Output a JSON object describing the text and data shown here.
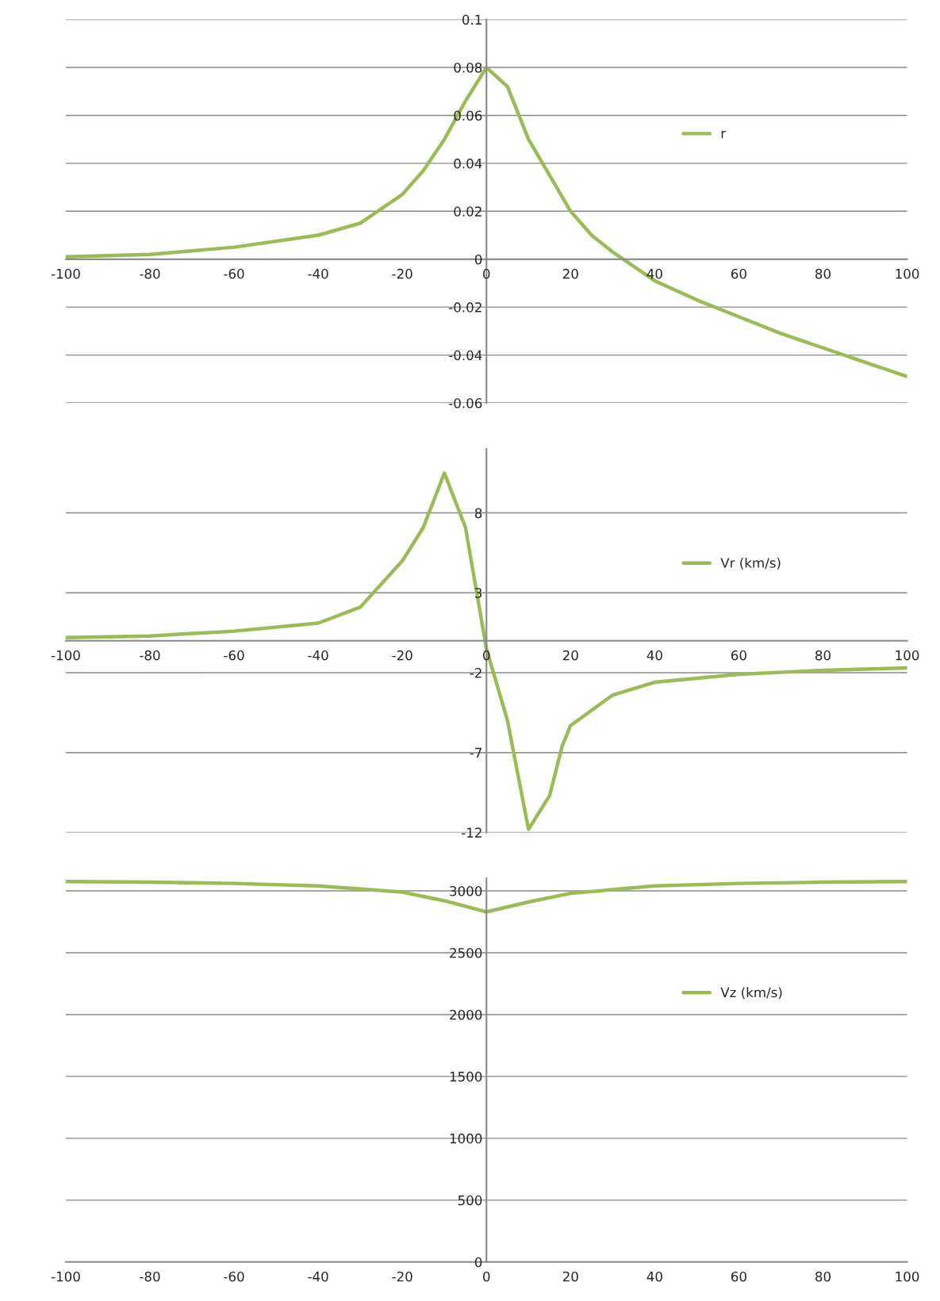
{
  "chart_data": [
    {
      "type": "line",
      "x": [
        -100,
        -80,
        -60,
        -40,
        -30,
        -20,
        -15,
        -10,
        -5,
        0,
        5,
        10,
        15,
        20,
        25,
        30,
        35,
        40,
        50,
        60,
        70,
        80,
        90,
        100
      ],
      "series": [
        {
          "name": "r",
          "color": "#9bbb59",
          "values": [
            0.001,
            0.002,
            0.005,
            0.01,
            0.015,
            0.027,
            0.037,
            0.05,
            0.066,
            0.08,
            0.072,
            0.05,
            0.035,
            0.02,
            0.01,
            0.003,
            -0.003,
            -0.009,
            -0.017,
            -0.024,
            -0.031,
            -0.037,
            -0.043,
            -0.049
          ]
        }
      ],
      "xlim": [
        -100,
        100
      ],
      "xticks": [
        -100,
        -80,
        -60,
        -40,
        -20,
        0,
        20,
        40,
        60,
        80,
        100
      ],
      "ylim": [
        -0.06,
        0.1
      ],
      "yticks": [
        -0.06,
        -0.04,
        -0.02,
        0,
        0.02,
        0.04,
        0.06,
        0.08,
        0.1
      ],
      "grid": "y",
      "legend": "right",
      "marker": "none",
      "line_style": "solid"
    },
    {
      "type": "line",
      "x": [
        -100,
        -80,
        -60,
        -40,
        -30,
        -20,
        -15,
        -10,
        -5,
        0,
        5,
        10,
        15,
        18,
        20,
        30,
        40,
        60,
        80,
        100
      ],
      "series": [
        {
          "name": "Vr (km/s)",
          "color": "#9bbb59",
          "values": [
            0.2,
            0.3,
            0.6,
            1.1,
            2.1,
            5,
            7.1,
            10.5,
            7.1,
            -0.5,
            -5,
            -11.8,
            -9.7,
            -6.6,
            -5.3,
            -3.4,
            -2.6,
            -2.1,
            -1.85,
            -1.7
          ]
        }
      ],
      "xlim": [
        -100,
        100
      ],
      "xticks": [
        -100,
        -80,
        -60,
        -40,
        -20,
        0,
        20,
        40,
        60,
        80,
        100
      ],
      "ylim": [
        -12,
        12
      ],
      "yticks": [
        -12,
        -7,
        -2,
        3,
        8
      ],
      "grid": "y",
      "legend": "right",
      "marker": "none",
      "line_style": "solid"
    },
    {
      "type": "line",
      "x": [
        -100,
        -80,
        -60,
        -40,
        -20,
        -10,
        0,
        10,
        20,
        40,
        60,
        80,
        100
      ],
      "series": [
        {
          "name": "Vz (km/s)",
          "color": "#9bbb59",
          "values": [
            3075,
            3070,
            3060,
            3040,
            2990,
            2920,
            2830,
            2910,
            2980,
            3040,
            3060,
            3070,
            3075
          ]
        }
      ],
      "xlim": [
        -100,
        100
      ],
      "xticks": [
        -100,
        -80,
        -60,
        -40,
        -20,
        0,
        20,
        40,
        60,
        80,
        100
      ],
      "ylim": [
        0,
        3100
      ],
      "yticks": [
        0,
        500,
        1000,
        1500,
        2000,
        2500,
        3000
      ],
      "grid": "y",
      "legend": "right",
      "marker": "none",
      "line_style": "solid"
    }
  ]
}
